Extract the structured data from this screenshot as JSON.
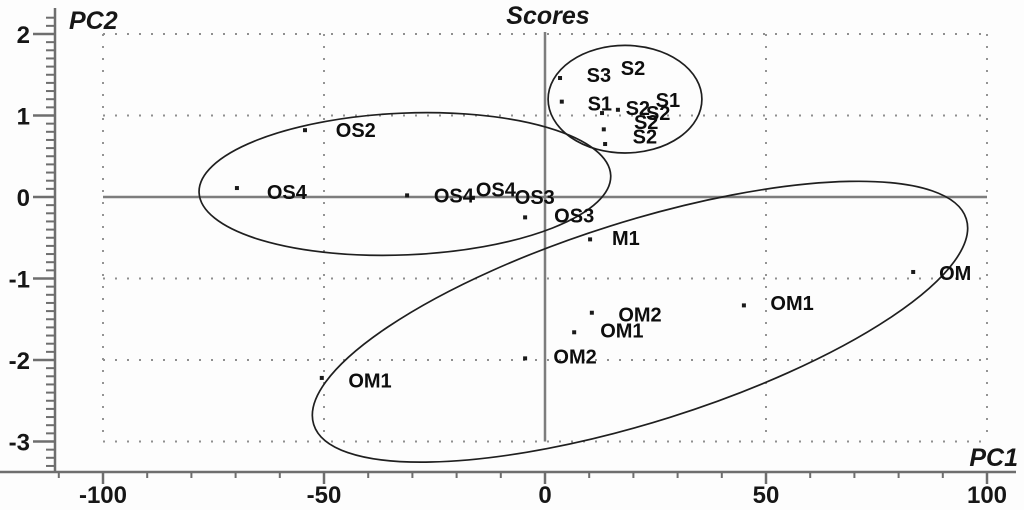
{
  "chart_data": {
    "type": "scatter",
    "title": "Scores",
    "xlabel": "PC1",
    "ylabel": "PC2",
    "xlim": [
      -110,
      100
    ],
    "ylim": [
      -3.35,
      2.25
    ],
    "frame": {
      "x": [
        -100,
        100
      ],
      "y": [
        -3,
        2
      ]
    },
    "grid": {
      "style": "dotted",
      "x_lines": [
        -100,
        -50,
        50,
        100
      ],
      "y_lines": [
        2,
        1,
        -1,
        -2,
        -3
      ]
    },
    "x_axis": {
      "major_ticks": [
        -100,
        -50,
        0,
        50,
        100
      ],
      "minor_step": 10,
      "minor_range": [
        -110,
        100
      ]
    },
    "y_axis": {
      "major_ticks": [
        2,
        1,
        0,
        -1,
        -2,
        -3
      ],
      "minor_step": 0.1,
      "minor_range": [
        -3.3,
        2.2
      ]
    },
    "zero_lines": {
      "horizontal_at_y": 0,
      "vertical_at_x": 0
    },
    "legend": "none",
    "points": [
      {
        "x": -54.3,
        "y": 0.82,
        "series": "OS2"
      },
      {
        "x": -69.7,
        "y": 0.11,
        "series": "OS4"
      },
      {
        "x": -31.2,
        "y": 0.02,
        "series": "OS4"
      },
      {
        "x": -16.3,
        "y": -0.01,
        "series": "OS4"
      },
      {
        "x": -4.5,
        "y": -0.25,
        "series": "OS3"
      },
      {
        "x": 10.2,
        "y": -0.52,
        "series": "M1"
      },
      {
        "x": 10.6,
        "y": -1.42,
        "series": "OM2"
      },
      {
        "x": 6.6,
        "y": -1.66,
        "series": "OM1"
      },
      {
        "x": -4.5,
        "y": -1.98,
        "series": "OM2"
      },
      {
        "x": -50.5,
        "y": -2.22,
        "series": "OM1"
      },
      {
        "x": 45.0,
        "y": -1.33,
        "series": "OM1"
      },
      {
        "x": 83.3,
        "y": -0.92,
        "series": "OM"
      },
      {
        "x": 3.4,
        "y": 1.46,
        "series": "S3"
      },
      {
        "x": 3.8,
        "y": 1.17,
        "series": "S1"
      },
      {
        "x": 16.5,
        "y": 1.07,
        "series": "S2"
      },
      {
        "x": 12.9,
        "y": 1.03,
        "series": "S2"
      },
      {
        "x": 13.3,
        "y": 0.83,
        "series": "S2"
      },
      {
        "x": 13.6,
        "y": 0.65,
        "series": "S2"
      }
    ],
    "point_labels": [
      {
        "text": "OS2",
        "x": -42.8,
        "y": 0.82
      },
      {
        "text": "OS4",
        "x": -58.4,
        "y": 0.06
      },
      {
        "text": "OS4",
        "x": -20.6,
        "y": 0.02
      },
      {
        "text": "OS4",
        "x": -11.1,
        "y": 0.09
      },
      {
        "text": "OS3",
        "x": -2.3,
        "y": 0.0
      },
      {
        "text": "OS3",
        "x": 6.6,
        "y": -0.23
      },
      {
        "text": "M1",
        "x": 18.3,
        "y": -0.5
      },
      {
        "text": "OM2",
        "x": 21.5,
        "y": -1.44
      },
      {
        "text": "OM1",
        "x": 17.4,
        "y": -1.64
      },
      {
        "text": "OM2",
        "x": 6.8,
        "y": -1.96
      },
      {
        "text": "OM1",
        "x": -39.6,
        "y": -2.25
      },
      {
        "text": "OM1",
        "x": 55.9,
        "y": -1.3
      },
      {
        "text": "OM",
        "x": 92.8,
        "y": -0.93
      },
      {
        "text": "S3",
        "x": 12.2,
        "y": 1.5
      },
      {
        "text": "S2",
        "x": 19.9,
        "y": 1.58
      },
      {
        "text": "S1",
        "x": 12.4,
        "y": 1.15
      },
      {
        "text": "S2",
        "x": 21.0,
        "y": 1.09
      },
      {
        "text": "S1",
        "x": 27.8,
        "y": 1.19
      },
      {
        "text": "S2",
        "x": 25.6,
        "y": 1.03
      },
      {
        "text": "S2",
        "x": 22.9,
        "y": 0.92
      },
      {
        "text": "S2",
        "x": 22.6,
        "y": 0.74
      }
    ],
    "cluster_ellipses": [
      {
        "name": "OS-cluster",
        "cx": -31.7,
        "cy": 0.16,
        "rx_x_units": 46.6,
        "ry_y_units": 0.87,
        "rotation_deg": -2.4
      },
      {
        "name": "S-cluster",
        "cx": 18.1,
        "cy": 1.2,
        "rx_x_units": 17.4,
        "ry_y_units": 0.66,
        "rotation_deg": 0
      },
      {
        "name": "OM-cluster",
        "cx": 21.5,
        "cy": -1.53,
        "rx_x_units": 77.4,
        "ry_y_units": 1.23,
        "rotation_deg": -17.5
      }
    ],
    "colors": {
      "background": "#fdfdfd",
      "axis_line": "#6e6e6e",
      "zero_line": "#7d7d7d",
      "grid_dots": "#8f8f8f",
      "point": "#1a1a1a",
      "ellipse_stroke": "#1f1f1f",
      "text": "#161616"
    }
  }
}
